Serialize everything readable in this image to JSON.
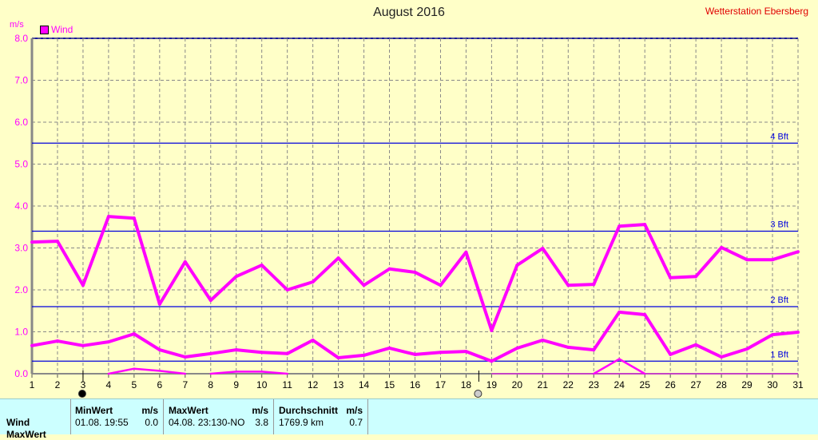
{
  "title": "August 2016",
  "station": "Wetterstation Ebersberg",
  "chart_data": {
    "type": "line",
    "ylabel": "m/s",
    "legend": [
      {
        "name": "Wind",
        "color": "#ff00ff"
      }
    ],
    "legend_position": "top-left",
    "grid": true,
    "xlim": [
      1,
      31
    ],
    "ylim": [
      0,
      8
    ],
    "x": [
      1,
      2,
      3,
      4,
      5,
      6,
      7,
      8,
      9,
      10,
      11,
      12,
      13,
      14,
      15,
      16,
      17,
      18,
      19,
      20,
      21,
      22,
      23,
      24,
      25,
      26,
      27,
      28,
      29,
      30,
      31
    ],
    "y_ticks": [
      "0.0",
      "1.0",
      "2.0",
      "3.0",
      "4.0",
      "5.0",
      "6.0",
      "7.0",
      "8.0"
    ],
    "series": [
      {
        "values": [
          3.14,
          3.16,
          2.11,
          3.75,
          3.71,
          1.66,
          2.67,
          1.75,
          2.32,
          2.59,
          2.0,
          2.19,
          2.76,
          2.11,
          2.5,
          2.42,
          2.11,
          2.9,
          1.03,
          2.59,
          2.99,
          2.11,
          2.13,
          3.52,
          3.56,
          2.29,
          2.32,
          3.01,
          2.72,
          2.72,
          2.91
        ]
      },
      {
        "values": [
          0.67,
          0.78,
          0.67,
          0.76,
          0.95,
          0.57,
          0.4,
          0.48,
          0.57,
          0.51,
          0.48,
          0.8,
          0.38,
          0.44,
          0.61,
          0.46,
          0.51,
          0.53,
          0.3,
          0.61,
          0.8,
          0.63,
          0.57,
          1.47,
          1.41,
          0.46,
          0.69,
          0.4,
          0.59,
          0.93,
          0.99
        ]
      },
      {
        "values": [
          0,
          0,
          0,
          0,
          0.12,
          0.07,
          0,
          0,
          0.05,
          0.05,
          0,
          0,
          0,
          0,
          0,
          0,
          0,
          0,
          0,
          0,
          0,
          0,
          0,
          0.35,
          0,
          0,
          0,
          0,
          0,
          0,
          0
        ]
      }
    ],
    "reference_lines": [
      {
        "label": "1 Bft",
        "value": 0.3,
        "color": "#0000dd"
      },
      {
        "label": "2 Bft",
        "value": 1.6,
        "color": "#0000dd"
      },
      {
        "label": "3 Bft",
        "value": 3.4,
        "color": "#0000dd"
      },
      {
        "label": "4 Bft",
        "value": 5.5,
        "color": "#0000dd"
      }
    ],
    "moon_phases": [
      {
        "day": 3,
        "phase": "new"
      },
      {
        "day": 18.5,
        "phase": "full"
      }
    ]
  },
  "table": {
    "row_label": "Wind",
    "next_row_label": "MaxWert",
    "min": {
      "header": "MinWert",
      "unit": "m/s",
      "date": "01.08.  19:55",
      "value": "0.0"
    },
    "max": {
      "header": "MaxWert",
      "unit": "m/s",
      "date": "04.08.  23:13",
      "dir": "0-NO",
      "value": "3.8"
    },
    "avg": {
      "header": "Durchschnitt",
      "unit": "m/s",
      "distance": "1769.9 km",
      "value": "0.7"
    }
  }
}
